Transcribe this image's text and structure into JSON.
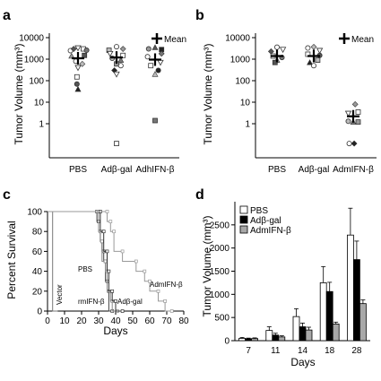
{
  "chart_data": [
    {
      "panel": "a",
      "type": "scatter",
      "ylabel": "Tumor Volume (mm³)",
      "yscale": "log",
      "ylim": [
        0.1,
        10000
      ],
      "yticks": [
        "10000",
        "1000",
        "100",
        "10",
        "1"
      ],
      "categories": [
        "PBS",
        "Adβ-gal",
        "AdhIFN-β"
      ],
      "legend": "Mean",
      "points": [
        {
          "cat": 0,
          "offset": -0.35,
          "y": 2500
        },
        {
          "cat": 0,
          "offset": -0.2,
          "y": 3000
        },
        {
          "cat": 0,
          "offset": 0.0,
          "y": 3300
        },
        {
          "cat": 0,
          "offset": 0.25,
          "y": 3000
        },
        {
          "cat": 0,
          "offset": 0.4,
          "y": 2600
        },
        {
          "cat": 0,
          "offset": -0.3,
          "y": 1400
        },
        {
          "cat": 0,
          "offset": 0.3,
          "y": 1500
        },
        {
          "cat": 0,
          "offset": -0.1,
          "y": 800
        },
        {
          "cat": 0,
          "offset": 0.2,
          "y": 600
        },
        {
          "cat": 0,
          "offset": 0.0,
          "y": 400
        },
        {
          "cat": 0,
          "offset": -0.05,
          "y": 150
        },
        {
          "cat": 0,
          "offset": -0.05,
          "y": 70
        },
        {
          "cat": 0,
          "offset": 0.0,
          "y": 40
        },
        {
          "cat": 1,
          "offset": -0.35,
          "y": 2600
        },
        {
          "cat": 1,
          "offset": 0.0,
          "y": 3800
        },
        {
          "cat": 1,
          "offset": 0.3,
          "y": 3000
        },
        {
          "cat": 1,
          "offset": -0.3,
          "y": 1800
        },
        {
          "cat": 1,
          "offset": 0.3,
          "y": 1500
        },
        {
          "cat": 1,
          "offset": -0.2,
          "y": 1100
        },
        {
          "cat": 1,
          "offset": 0.2,
          "y": 900
        },
        {
          "cat": 1,
          "offset": 0.0,
          "y": 600
        },
        {
          "cat": 1,
          "offset": 0.2,
          "y": 500
        },
        {
          "cat": 1,
          "offset": -0.1,
          "y": 300
        },
        {
          "cat": 1,
          "offset": 0.0,
          "y": 200
        },
        {
          "cat": 1,
          "offset": 0.0,
          "y": 0.12
        },
        {
          "cat": 2,
          "offset": -0.3,
          "y": 3000
        },
        {
          "cat": 2,
          "offset": 0.0,
          "y": 3500
        },
        {
          "cat": 2,
          "offset": 0.3,
          "y": 2800
        },
        {
          "cat": 2,
          "offset": -0.35,
          "y": 1300
        },
        {
          "cat": 2,
          "offset": 0.3,
          "y": 1800
        },
        {
          "cat": 2,
          "offset": 0.25,
          "y": 700
        },
        {
          "cat": 2,
          "offset": -0.2,
          "y": 500
        },
        {
          "cat": 2,
          "offset": 0.15,
          "y": 300
        },
        {
          "cat": 2,
          "offset": 0.0,
          "y": 200
        },
        {
          "cat": 2,
          "offset": 0.0,
          "y": 1.4
        }
      ],
      "means": [
        {
          "cat": 0,
          "y": 1100
        },
        {
          "cat": 1,
          "y": 1200
        },
        {
          "cat": 2,
          "y": 950
        }
      ]
    },
    {
      "panel": "b",
      "type": "scatter",
      "ylabel": "Tumor Volume (mm³)",
      "yscale": "log",
      "ylim": [
        0.1,
        10000
      ],
      "yticks": [
        "10000",
        "1000",
        "100",
        "10",
        "1"
      ],
      "categories": [
        "PBS",
        "Adβ-gal",
        "AdmIFN-β"
      ],
      "legend": "Mean",
      "points": [
        {
          "cat": 0,
          "offset": 0.0,
          "y": 3600
        },
        {
          "cat": 0,
          "offset": -0.3,
          "y": 2300
        },
        {
          "cat": 0,
          "offset": 0.3,
          "y": 2800
        },
        {
          "cat": 0,
          "offset": -0.2,
          "y": 1400
        },
        {
          "cat": 0,
          "offset": 0.25,
          "y": 1200
        },
        {
          "cat": 0,
          "offset": 0.0,
          "y": 900
        },
        {
          "cat": 0,
          "offset": -0.1,
          "y": 700
        },
        {
          "cat": 1,
          "offset": -0.3,
          "y": 3300
        },
        {
          "cat": 1,
          "offset": 0.0,
          "y": 3700
        },
        {
          "cat": 1,
          "offset": 0.3,
          "y": 2500
        },
        {
          "cat": 1,
          "offset": -0.3,
          "y": 1700
        },
        {
          "cat": 1,
          "offset": 0.3,
          "y": 1500
        },
        {
          "cat": 1,
          "offset": -0.2,
          "y": 700
        },
        {
          "cat": 1,
          "offset": 0.2,
          "y": 900
        },
        {
          "cat": 1,
          "offset": 0.0,
          "y": 500
        },
        {
          "cat": 2,
          "offset": 0.1,
          "y": 8
        },
        {
          "cat": 2,
          "offset": -0.25,
          "y": 3
        },
        {
          "cat": 2,
          "offset": 0.25,
          "y": 3.5
        },
        {
          "cat": 2,
          "offset": -0.25,
          "y": 1.3
        },
        {
          "cat": 2,
          "offset": 0.0,
          "y": 1.2
        },
        {
          "cat": 2,
          "offset": 0.25,
          "y": 1.2
        },
        {
          "cat": 2,
          "offset": -0.2,
          "y": 0.12
        },
        {
          "cat": 2,
          "offset": 0.05,
          "y": 0.12
        }
      ],
      "means": [
        {
          "cat": 0,
          "y": 1400
        },
        {
          "cat": 1,
          "y": 1400
        },
        {
          "cat": 2,
          "y": 2.2
        }
      ]
    },
    {
      "panel": "c",
      "type": "line",
      "ylabel": "Percent Survival",
      "xlabel": "Days",
      "xlim": [
        0,
        80
      ],
      "ylim": [
        0,
        100
      ],
      "xticks": [
        0,
        10,
        20,
        30,
        40,
        50,
        60,
        70,
        80
      ],
      "yticks": [
        0,
        20,
        40,
        60,
        80,
        100
      ],
      "series": [
        {
          "name": "Vector",
          "steps": [
            [
              0,
              100
            ],
            [
              3,
              100
            ],
            [
              3,
              0
            ],
            [
              6,
              0
            ]
          ]
        },
        {
          "name": "PBS",
          "steps": [
            [
              0,
              100
            ],
            [
              29,
              100
            ],
            [
              29,
              90
            ],
            [
              30,
              90
            ],
            [
              30,
              80
            ],
            [
              31,
              80
            ],
            [
              31,
              70
            ],
            [
              32,
              70
            ],
            [
              32,
              60
            ],
            [
              33,
              60
            ],
            [
              33,
              50
            ],
            [
              34,
              50
            ],
            [
              34,
              30
            ],
            [
              35,
              30
            ],
            [
              35,
              20
            ],
            [
              36,
              20
            ],
            [
              36,
              0
            ],
            [
              38,
              0
            ]
          ]
        },
        {
          "name": "rmIFN-β",
          "steps": [
            [
              0,
              100
            ],
            [
              30,
              100
            ],
            [
              30,
              80
            ],
            [
              31,
              80
            ],
            [
              31,
              70
            ],
            [
              32,
              70
            ],
            [
              32,
              50
            ],
            [
              34,
              50
            ],
            [
              34,
              40
            ],
            [
              35,
              40
            ],
            [
              35,
              20
            ],
            [
              37,
              20
            ],
            [
              37,
              10
            ],
            [
              38,
              10
            ],
            [
              38,
              0
            ],
            [
              41,
              0
            ]
          ]
        },
        {
          "name": "Adβ-gal",
          "steps": [
            [
              0,
              100
            ],
            [
              31,
              100
            ],
            [
              31,
              80
            ],
            [
              33,
              80
            ],
            [
              33,
              60
            ],
            [
              35,
              60
            ],
            [
              35,
              40
            ],
            [
              36,
              40
            ],
            [
              36,
              20
            ],
            [
              38,
              20
            ],
            [
              38,
              10
            ],
            [
              40,
              10
            ],
            [
              40,
              0
            ],
            [
              44,
              0
            ]
          ]
        },
        {
          "name": "AdmIFN-β",
          "steps": [
            [
              0,
              100
            ],
            [
              35,
              100
            ],
            [
              35,
              90
            ],
            [
              37,
              90
            ],
            [
              37,
              80
            ],
            [
              39,
              80
            ],
            [
              39,
              60
            ],
            [
              44,
              60
            ],
            [
              44,
              50
            ],
            [
              52,
              50
            ],
            [
              52,
              40
            ],
            [
              57,
              40
            ],
            [
              57,
              30
            ],
            [
              60,
              30
            ],
            [
              60,
              20
            ],
            [
              65,
              20
            ],
            [
              65,
              10
            ],
            [
              69,
              10
            ],
            [
              69,
              0
            ],
            [
              73,
              0
            ]
          ]
        }
      ],
      "labels": [
        "PBS",
        "Vector",
        "rmIFN-β",
        "Adβ-gal",
        "AdmIFN-β"
      ]
    },
    {
      "panel": "d",
      "type": "bar",
      "ylabel": "Tumor Volume (mm³)",
      "xlabel": "Days",
      "ylim": [
        0,
        3000
      ],
      "yticks": [
        0,
        500,
        1000,
        1500,
        2000,
        2500
      ],
      "categories": [
        "7",
        "11",
        "14",
        "18",
        "28"
      ],
      "series": [
        {
          "name": "PBS",
          "color": "#ffffff",
          "values": [
            50,
            220,
            520,
            1250,
            2280
          ],
          "errors": [
            20,
            80,
            170,
            350,
            580
          ]
        },
        {
          "name": "Adβ-gal",
          "color": "#000000",
          "values": [
            40,
            120,
            300,
            1060,
            1750
          ],
          "errors": [
            15,
            40,
            80,
            200,
            400
          ]
        },
        {
          "name": "AdmIFN-β",
          "color": "#a8a8a8",
          "values": [
            45,
            80,
            230,
            360,
            800
          ],
          "errors": [
            15,
            25,
            60,
            40,
            80
          ]
        }
      ]
    }
  ]
}
